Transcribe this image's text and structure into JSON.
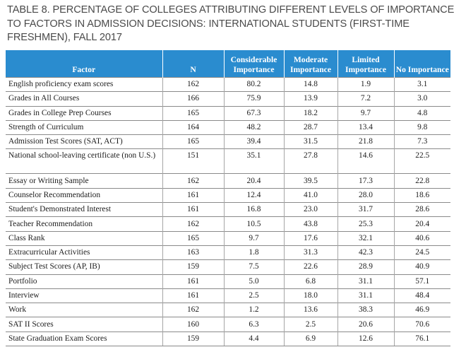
{
  "title": "TABLE 8. PERCENTAGE OF COLLEGES ATTRIBUTING DIFFERENT LEVELS OF IMPORTANCE TO FACTORS IN ADMISSION DECISIONS: INTERNATIONAL STUDENTS (FIRST-TIME FRESHMEN), FALL 2017",
  "header": {
    "factor": "Factor",
    "n": "N",
    "considerable": "Considerable Importance",
    "moderate": "Moderate Importance",
    "limited": "Limited Importance",
    "none": "No Importance"
  },
  "colors": {
    "header_bg": "#2a8ccf",
    "title_text": "#4a4a4a"
  },
  "rows": [
    {
      "factor": "English proficiency exam scores",
      "n": "162",
      "considerable": "80.2",
      "moderate": "14.8",
      "limited": "1.9",
      "none": "3.1"
    },
    {
      "factor": "Grades in All Courses",
      "n": "166",
      "considerable": "75.9",
      "moderate": "13.9",
      "limited": "7.2",
      "none": "3.0"
    },
    {
      "factor": "Grades in College Prep Courses",
      "n": "165",
      "considerable": "67.3",
      "moderate": "18.2",
      "limited": "9.7",
      "none": "4.8"
    },
    {
      "factor": "Strength of Curriculum",
      "n": "164",
      "considerable": "48.2",
      "moderate": "28.7",
      "limited": "13.4",
      "none": "9.8"
    },
    {
      "factor": "Admission Test Scores (SAT, ACT)",
      "n": "165",
      "considerable": "39.4",
      "moderate": "31.5",
      "limited": "21.8",
      "none": "7.3"
    },
    {
      "factor": "National school-leaving certificate (non U.S.)",
      "n": "151",
      "considerable": "35.1",
      "moderate": "27.8",
      "limited": "14.6",
      "none": "22.5"
    },
    {
      "factor": "Essay or Writing Sample",
      "n": "162",
      "considerable": "20.4",
      "moderate": "39.5",
      "limited": "17.3",
      "none": "22.8"
    },
    {
      "factor": "Counselor Recommendation",
      "n": "161",
      "considerable": "12.4",
      "moderate": "41.0",
      "limited": "28.0",
      "none": "18.6"
    },
    {
      "factor": "Student's Demonstrated Interest",
      "n": "161",
      "considerable": "16.8",
      "moderate": "23.0",
      "limited": "31.7",
      "none": "28.6"
    },
    {
      "factor": "Teacher Recommendation",
      "n": "162",
      "considerable": "10.5",
      "moderate": "43.8",
      "limited": "25.3",
      "none": "20.4"
    },
    {
      "factor": "Class Rank",
      "n": "165",
      "considerable": "9.7",
      "moderate": "17.6",
      "limited": "32.1",
      "none": "40.6"
    },
    {
      "factor": "Extracurricular Activities",
      "n": "163",
      "considerable": "1.8",
      "moderate": "31.3",
      "limited": "42.3",
      "none": "24.5"
    },
    {
      "factor": "Subject Test Scores (AP, IB)",
      "n": "159",
      "considerable": "7.5",
      "moderate": "22.6",
      "limited": "28.9",
      "none": "40.9"
    },
    {
      "factor": "Portfolio",
      "n": "161",
      "considerable": "5.0",
      "moderate": "6.8",
      "limited": "31.1",
      "none": "57.1"
    },
    {
      "factor": "Interview",
      "n": "161",
      "considerable": "2.5",
      "moderate": "18.0",
      "limited": "31.1",
      "none": "48.4"
    },
    {
      "factor": "Work",
      "n": "162",
      "considerable": "1.2",
      "moderate": "13.6",
      "limited": "38.3",
      "none": "46.9"
    },
    {
      "factor": "SAT II Scores",
      "n": "160",
      "considerable": "6.3",
      "moderate": "2.5",
      "limited": "20.6",
      "none": "70.6"
    },
    {
      "factor": "State Graduation Exam Scores",
      "n": "159",
      "considerable": "4.4",
      "moderate": "6.9",
      "limited": "12.6",
      "none": "76.1"
    }
  ]
}
